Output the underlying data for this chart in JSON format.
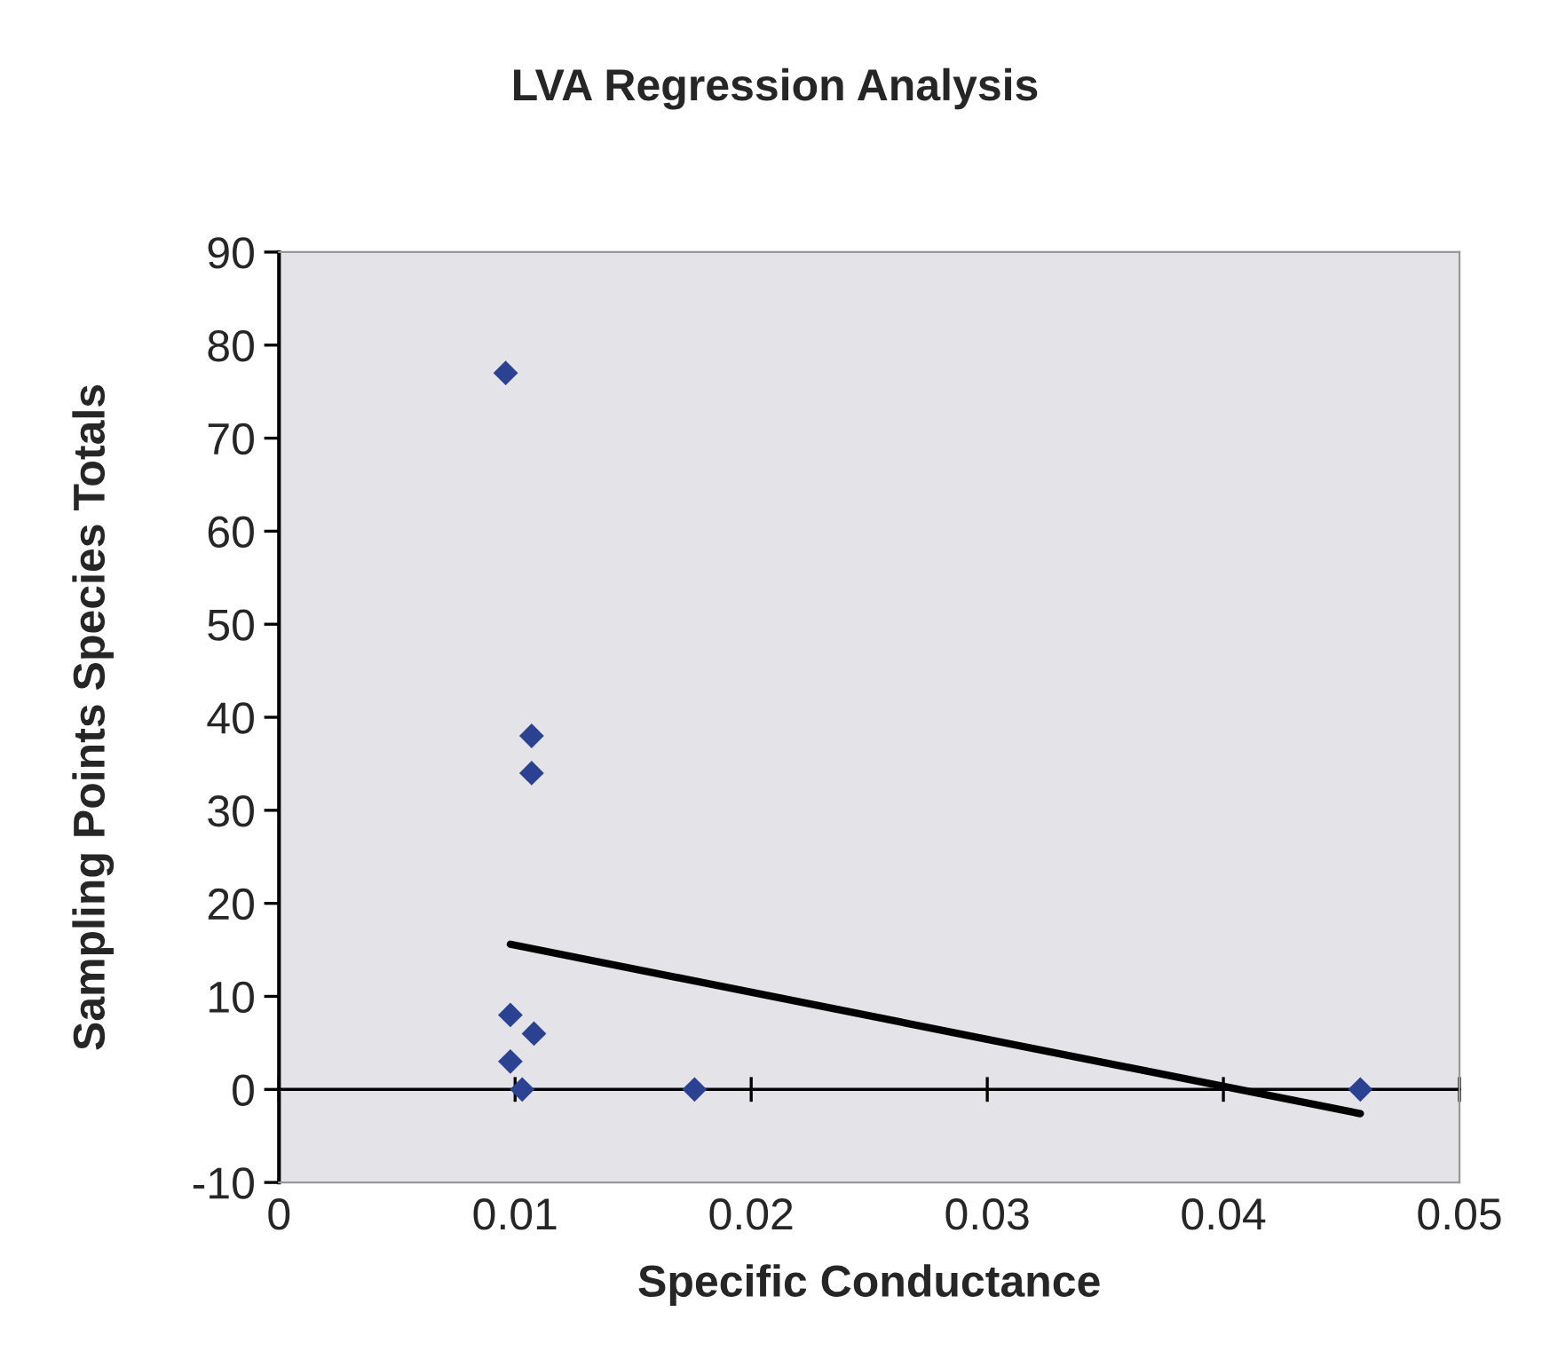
{
  "chart_data": {
    "type": "scatter",
    "title": "LVA Regression Analysis",
    "xlabel": "Specific Conductance",
    "ylabel": "Sampling Points Species Totals",
    "xlim": [
      0,
      0.05
    ],
    "xticks": [
      0,
      0.01,
      0.02,
      0.03,
      0.04,
      0.05
    ],
    "ylim": [
      -10,
      90
    ],
    "yticks": [
      -10,
      0,
      10,
      20,
      30,
      40,
      50,
      60,
      70,
      80,
      90
    ],
    "legend": false,
    "series": [
      {
        "color": "#2b4191",
        "marker": "diamond",
        "x": [
          0.0096,
          0.0107,
          0.0107,
          0.0098,
          0.0108,
          0.0098,
          0.0103,
          0.0176,
          0.0458
        ],
        "values": [
          77,
          38,
          34,
          8,
          6,
          3,
          0,
          0,
          0
        ]
      },
      {
        "type": "line",
        "color": "#000000",
        "marker": "none",
        "line_style": "solid",
        "x": [
          0.0098,
          0.0458
        ],
        "values": [
          15.6,
          -2.6
        ]
      }
    ]
  }
}
